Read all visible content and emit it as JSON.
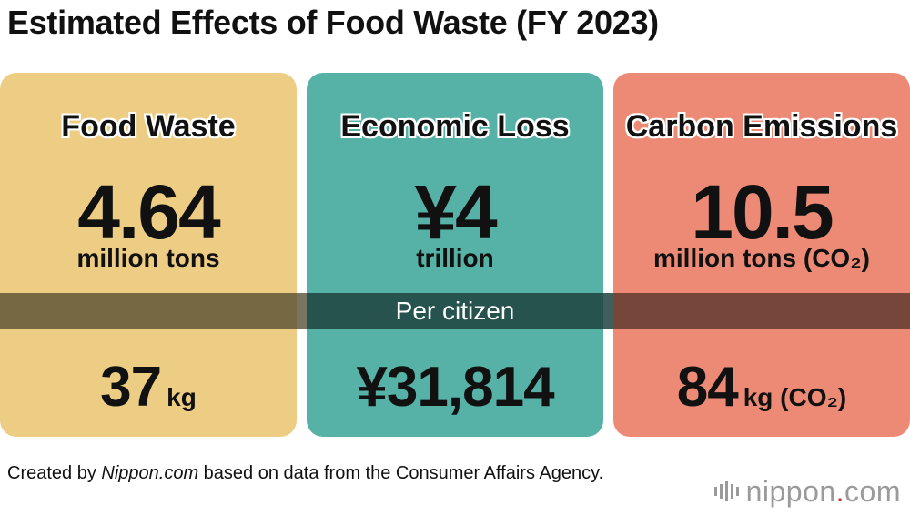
{
  "title": "Estimated Effects of Food Waste (FY 2023)",
  "panels": [
    {
      "label": "Food Waste",
      "value": "4.64",
      "unit": "million tons",
      "per_value": "37",
      "per_unit": "kg",
      "color": "#edcd84"
    },
    {
      "label": "Economic Loss",
      "value": "¥4",
      "unit": "trillion",
      "per_value": "¥31,814",
      "per_unit": "",
      "color": "#56b2a7"
    },
    {
      "label": "Carbon Emissions",
      "value": "10.5",
      "unit": "million tons (CO₂)",
      "per_value": "84",
      "per_unit": "kg (CO₂)",
      "color": "#ec8a76"
    }
  ],
  "band_label": "Per citizen",
  "footer": {
    "prefix": "Created by ",
    "source_name": "Nippon.com",
    "suffix": " based on data from the Consumer Affairs Agency."
  },
  "logo": {
    "name": "nippon",
    "dot": ".",
    "tld": "com"
  }
}
